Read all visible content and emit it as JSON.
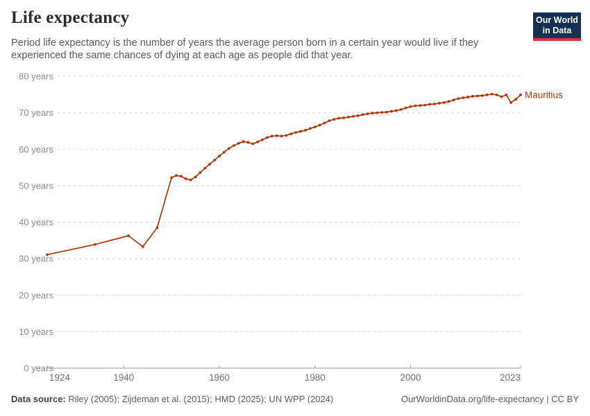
{
  "header": {
    "title": "Life expectancy",
    "subtitle": "Period life expectancy is the number of years the average person born in a certain year would live if they experienced the same chances of dying at each age as people did that year.",
    "logo_line1": "Our World",
    "logo_line2": "in Data"
  },
  "footer": {
    "source_label": "Data source:",
    "source_text": " Riley (2005); Zijdeman et al. (2015); HMD (2025); UN WPP (2024)",
    "attribution": "OurWorldinData.org/life-expectancy | CC BY"
  },
  "colors": {
    "series": "#B13507",
    "grid": "#dcdcdc",
    "axis": "#999999",
    "x_tick_label": "#6f6f6f",
    "y_tick_label": "#8a8a8a"
  },
  "chart_data": {
    "type": "line",
    "title": "Life expectancy",
    "xlabel": "",
    "ylabel": "years",
    "xlim": [
      1924,
      2023
    ],
    "ylim": [
      0,
      80
    ],
    "grid": "horizontal dashed",
    "legend_position": "line-end label",
    "x_ticks": [
      1924,
      1940,
      1960,
      1980,
      2000,
      2023
    ],
    "y_ticks": [
      0,
      10,
      20,
      30,
      40,
      50,
      60,
      70,
      80
    ],
    "y_tick_suffix": " years",
    "series": [
      {
        "name": "Mauritius",
        "points": [
          [
            1924,
            31.1
          ],
          [
            1934,
            33.9
          ],
          [
            1941,
            36.3
          ],
          [
            1944,
            33.3
          ],
          [
            1947,
            38.5
          ],
          [
            1950,
            52.2
          ],
          [
            1951,
            52.8
          ],
          [
            1952,
            52.6
          ],
          [
            1953,
            51.9
          ],
          [
            1954,
            51.6
          ],
          [
            1955,
            52.4
          ],
          [
            1956,
            53.6
          ],
          [
            1957,
            54.8
          ],
          [
            1958,
            55.9
          ],
          [
            1959,
            57.0
          ],
          [
            1960,
            58.1
          ],
          [
            1961,
            59.2
          ],
          [
            1962,
            60.2
          ],
          [
            1963,
            61.0
          ],
          [
            1964,
            61.6
          ],
          [
            1965,
            62.1
          ],
          [
            1966,
            61.9
          ],
          [
            1967,
            61.5
          ],
          [
            1968,
            62.0
          ],
          [
            1969,
            62.6
          ],
          [
            1970,
            63.2
          ],
          [
            1971,
            63.6
          ],
          [
            1972,
            63.7
          ],
          [
            1973,
            63.6
          ],
          [
            1974,
            63.8
          ],
          [
            1975,
            64.2
          ],
          [
            1976,
            64.6
          ],
          [
            1977,
            64.9
          ],
          [
            1978,
            65.2
          ],
          [
            1979,
            65.7
          ],
          [
            1980,
            66.1
          ],
          [
            1981,
            66.6
          ],
          [
            1982,
            67.2
          ],
          [
            1983,
            67.8
          ],
          [
            1984,
            68.2
          ],
          [
            1985,
            68.5
          ],
          [
            1986,
            68.6
          ],
          [
            1987,
            68.8
          ],
          [
            1988,
            69.0
          ],
          [
            1989,
            69.2
          ],
          [
            1990,
            69.5
          ],
          [
            1991,
            69.7
          ],
          [
            1992,
            69.9
          ],
          [
            1993,
            70.0
          ],
          [
            1994,
            70.1
          ],
          [
            1995,
            70.2
          ],
          [
            1996,
            70.4
          ],
          [
            1997,
            70.6
          ],
          [
            1998,
            70.9
          ],
          [
            1999,
            71.3
          ],
          [
            2000,
            71.7
          ],
          [
            2001,
            71.9
          ],
          [
            2002,
            72.0
          ],
          [
            2003,
            72.1
          ],
          [
            2004,
            72.3
          ],
          [
            2005,
            72.4
          ],
          [
            2006,
            72.6
          ],
          [
            2007,
            72.8
          ],
          [
            2008,
            73.1
          ],
          [
            2009,
            73.5
          ],
          [
            2010,
            73.9
          ],
          [
            2011,
            74.1
          ],
          [
            2012,
            74.3
          ],
          [
            2013,
            74.5
          ],
          [
            2014,
            74.6
          ],
          [
            2015,
            74.7
          ],
          [
            2016,
            74.9
          ],
          [
            2017,
            75.1
          ],
          [
            2018,
            74.9
          ],
          [
            2019,
            74.4
          ],
          [
            2020,
            74.9
          ],
          [
            2021,
            72.8
          ],
          [
            2022,
            73.7
          ],
          [
            2023,
            74.9
          ]
        ]
      }
    ]
  }
}
